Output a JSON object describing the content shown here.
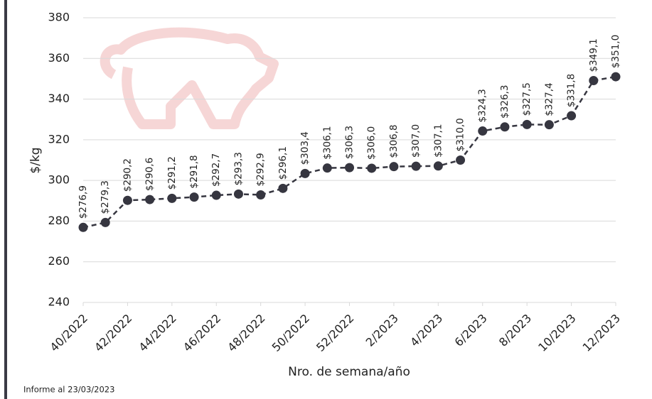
{
  "chart_data": {
    "type": "line",
    "x_label": "Nro. de semana/año",
    "y_label": "$/kg",
    "footnote": "Informe al 23/03/2023",
    "categories": [
      "40/2022",
      null,
      "42/2022",
      null,
      "44/2022",
      null,
      "46/2022",
      null,
      "48/2022",
      null,
      "50/2022",
      null,
      "52/2022",
      null,
      "2/2023",
      null,
      "4/2023",
      null,
      "6/2023",
      null,
      "8/2023",
      null,
      "10/2023",
      null,
      "12/2023"
    ],
    "values": [
      276.9,
      279.3,
      290.2,
      290.6,
      291.2,
      291.8,
      292.7,
      293.3,
      292.9,
      296.1,
      303.4,
      306.1,
      306.3,
      306.0,
      306.8,
      307.0,
      307.1,
      310.0,
      324.3,
      326.3,
      327.5,
      327.4,
      331.8,
      349.1,
      351.0
    ],
    "value_labels": [
      "$276,9",
      "$279,3",
      "$290,2",
      "$290,6",
      "$291,2",
      "$291,8",
      "$292,7",
      "$293,3",
      "$292,9",
      "$296,1",
      "$303,4",
      "$306,1",
      "$306,3",
      "$306,0",
      "$306,8",
      "$307,0",
      "$307,1",
      "$310,0",
      "$324,3",
      "$326,3",
      "$327,5",
      "$327,4",
      "$331,8",
      "$349,1",
      "$351,0"
    ],
    "color": "#363640",
    "ylim": [
      240,
      380
    ],
    "yticks": [
      240,
      260,
      280,
      300,
      320,
      340,
      360,
      380
    ],
    "grid": true
  }
}
